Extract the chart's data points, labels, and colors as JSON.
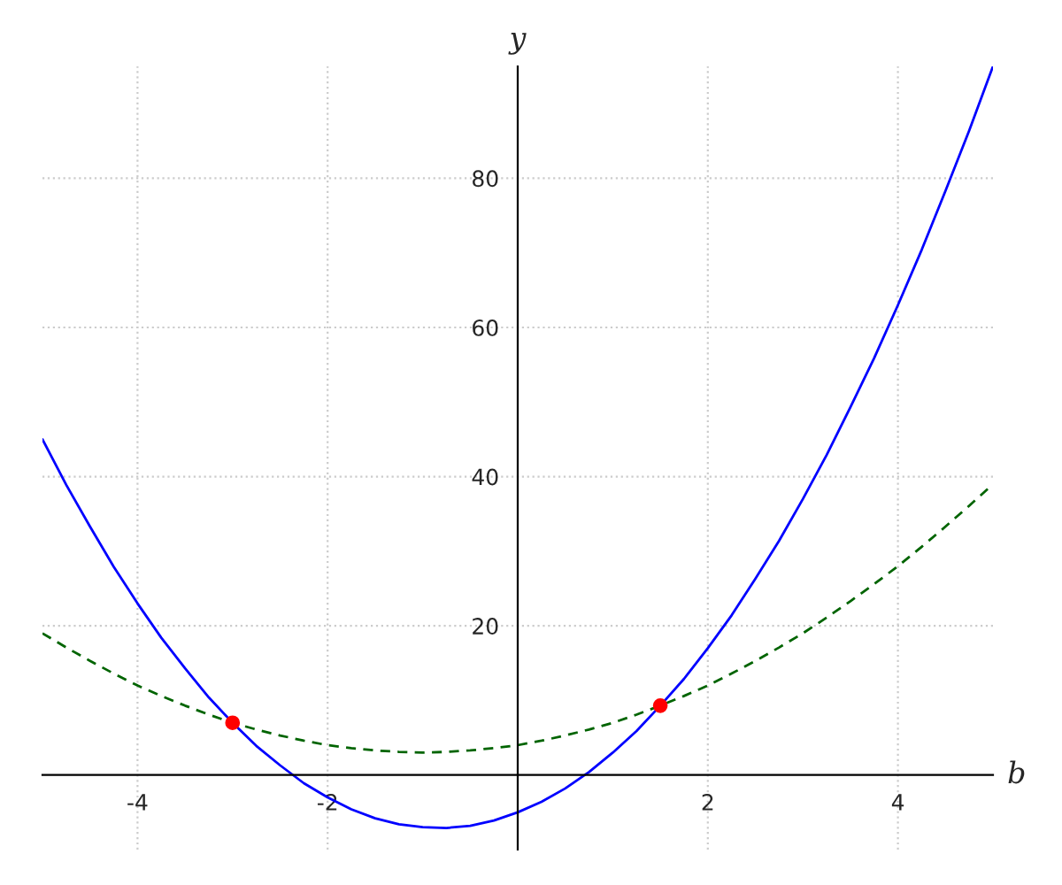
{
  "chart_data": {
    "type": "line",
    "xlabel": "b",
    "ylabel": "y",
    "xlim": [
      -5,
      5
    ],
    "ylim": [
      -10,
      95
    ],
    "xticks": [
      {
        "value": -4,
        "label": "-4"
      },
      {
        "value": -2,
        "label": "-2"
      },
      {
        "value": 2,
        "label": "2"
      },
      {
        "value": 4,
        "label": "4"
      }
    ],
    "yticks": [
      20,
      40,
      60,
      80
    ],
    "grid": true,
    "series": [
      {
        "color": "#0000ff",
        "line_style": "solid",
        "x": [
          -5,
          -4.75,
          -4.5,
          -4.25,
          -4,
          -3.75,
          -3.5,
          -3.25,
          -3,
          -2.75,
          -2.5,
          -2.25,
          -2,
          -1.75,
          -1.5,
          -1.25,
          -1,
          -0.75,
          -0.5,
          -0.25,
          0,
          0.25,
          0.5,
          0.75,
          1,
          1.25,
          1.5,
          1.75,
          2,
          2.25,
          2.5,
          2.75,
          3,
          3.25,
          3.5,
          3.75,
          4,
          4.25,
          4.5,
          4.75,
          5
        ],
        "values": [
          45,
          38.9,
          33.3,
          27.9,
          23,
          18.4,
          14.3,
          10.4,
          7,
          3.9,
          1.3,
          -1.1,
          -3,
          -4.6,
          -5.8,
          -6.6,
          -7,
          -7.1,
          -6.8,
          -6.1,
          -5,
          -3.6,
          -1.8,
          0.4,
          3,
          5.9,
          9.3,
          12.9,
          17,
          21.4,
          26.3,
          31.4,
          37,
          42.9,
          49.3,
          55.9,
          63,
          70.4,
          78.3,
          86.4,
          95
        ]
      },
      {
        "color": "#006400",
        "line_style": "dashed",
        "x": [
          -5,
          -4.75,
          -4.5,
          -4.25,
          -4,
          -3.75,
          -3.5,
          -3.25,
          -3,
          -2.75,
          -2.5,
          -2.25,
          -2,
          -1.75,
          -1.5,
          -1.25,
          -1,
          -0.75,
          -0.5,
          -0.25,
          0,
          0.25,
          0.5,
          0.75,
          1,
          1.25,
          1.5,
          1.75,
          2,
          2.25,
          2.5,
          2.75,
          3,
          3.25,
          3.5,
          3.75,
          4,
          4.25,
          4.5,
          4.75,
          5
        ],
        "values": [
          19,
          17.1,
          15.3,
          13.6,
          12,
          10.6,
          9.3,
          8.1,
          7,
          6.1,
          5.3,
          4.6,
          4,
          3.6,
          3.3,
          3.1,
          3,
          3.1,
          3.3,
          3.6,
          4,
          4.6,
          5.3,
          6.1,
          7,
          8.1,
          9.3,
          10.6,
          12,
          13.6,
          15.3,
          17.1,
          19,
          21.1,
          23.3,
          25.6,
          28,
          30.6,
          33.3,
          36.1,
          39
        ]
      },
      {
        "type": "scatter",
        "color": "#ff0000",
        "marker": "circle",
        "x": [
          -3,
          1.5
        ],
        "values": [
          7,
          9.3
        ]
      }
    ]
  }
}
